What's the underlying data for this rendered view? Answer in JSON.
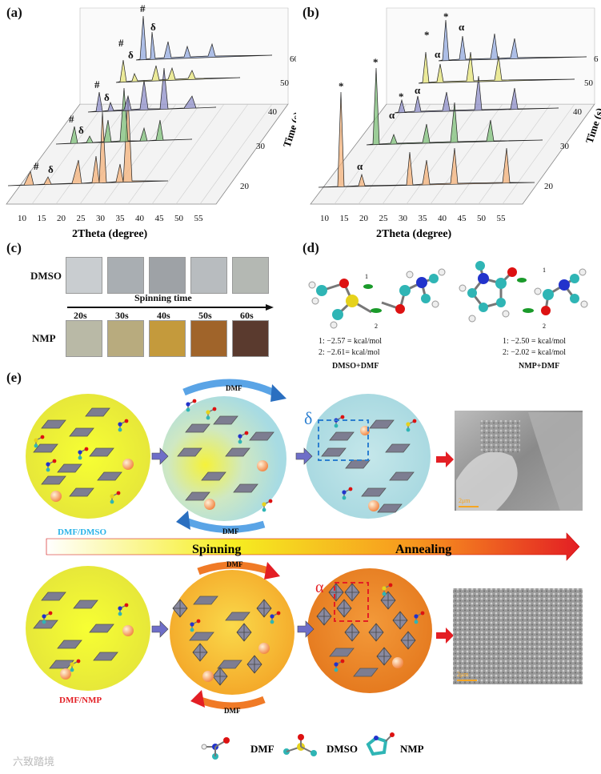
{
  "panels": {
    "a": {
      "label": "(a)",
      "xlabel": "2Theta (degree)",
      "zlabel": "Time (s)",
      "x_ticks": [
        "10",
        "15",
        "20",
        "25",
        "30",
        "35",
        "40",
        "45",
        "50",
        "55"
      ],
      "time_ticks": [
        "20",
        "30",
        "40",
        "50",
        "60"
      ],
      "markers": [
        "#",
        "δ",
        "#",
        "δ",
        "#",
        "δ",
        "#",
        "δ",
        "#",
        "δ"
      ]
    },
    "b": {
      "label": "(b)",
      "xlabel": "2Theta (degree)",
      "zlabel": "Time (s)",
      "x_ticks": [
        "10",
        "15",
        "20",
        "25",
        "30",
        "35",
        "40",
        "45",
        "50",
        "55"
      ],
      "time_ticks": [
        "20",
        "30",
        "40",
        "50",
        "6"
      ],
      "markers": [
        "*",
        "α",
        "*",
        "α",
        "*",
        "α",
        "*",
        "α",
        "*"
      ]
    },
    "c": {
      "label": "(c)",
      "row1": "DMSO",
      "row2": "NMP",
      "axis_title": "Spinning time",
      "times": [
        "20s",
        "30s",
        "40s",
        "50s",
        "60s"
      ],
      "dmso_colors": [
        "#c9cdd0",
        "#a9aeb2",
        "#9ea2a6",
        "#b8bcbf",
        "#b4b8b3"
      ],
      "nmp_colors": [
        "#b9b9a6",
        "#b8ab7e",
        "#c49a3c",
        "#a0642a",
        "#5a3a2e"
      ]
    },
    "d": {
      "label": "(d)",
      "left": {
        "e1": "1:  −2.57 = kcal/mol",
        "e2": "2:  −2.61= kcal/mol",
        "caption": "DMSO+DMF",
        "n1": "1",
        "n2": "2"
      },
      "right": {
        "e1": "1:  −2.50 = kcal/mol",
        "e2": "2:  −2.02 = kcal/mol",
        "caption": "NMP+DMF",
        "n1": "1",
        "n2": "2"
      }
    },
    "e": {
      "label": "(e)",
      "dmf_arrow": "DMF",
      "delta": "δ",
      "alpha": "α",
      "row1_caption": "DMF/DMSO",
      "row2_caption": "DMF/NMP",
      "spinning": "Spinning",
      "annealing": "Annealing",
      "scalebar": "2μm",
      "legend": [
        "DMF",
        "DMSO",
        "NMP"
      ]
    }
  },
  "watermark": "六致踏境"
}
